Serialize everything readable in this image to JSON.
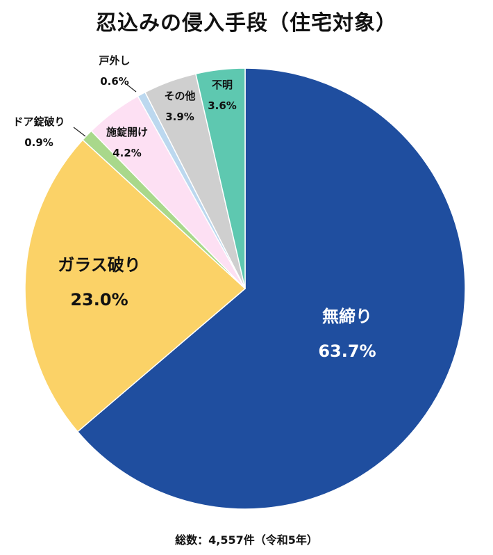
{
  "chart_data": {
    "type": "pie",
    "title": "忍込みの侵入手段（住宅対象）",
    "unit": "%",
    "slices": [
      {
        "label": "無締り",
        "value": 63.7,
        "value_text": "63.7%",
        "color": "#1f4e9f",
        "label_color": "#ffffff"
      },
      {
        "label": "ガラス破り",
        "value": 23.0,
        "value_text": "23.0%",
        "color": "#fbd267",
        "label_color": "#111111"
      },
      {
        "label": "ドア錠破り",
        "value": 0.9,
        "value_text": "0.9%",
        "color": "#a9d88b",
        "label_color": "#111111"
      },
      {
        "label": "施錠開け",
        "value": 4.2,
        "value_text": "4.2%",
        "color": "#fde0f3",
        "label_color": "#111111"
      },
      {
        "label": "戸外し",
        "value": 0.6,
        "value_text": "0.6%",
        "color": "#bcd8ef",
        "label_color": "#111111"
      },
      {
        "label": "その他",
        "value": 3.9,
        "value_text": "3.9%",
        "color": "#cfcfcf",
        "label_color": "#111111"
      },
      {
        "label": "不明",
        "value": 3.6,
        "value_text": "3.6%",
        "color": "#5ec8b0",
        "label_color": "#111111"
      }
    ],
    "order": "clockwise from 12 o'clock",
    "note": "総数：4,557件（令和5年）"
  }
}
